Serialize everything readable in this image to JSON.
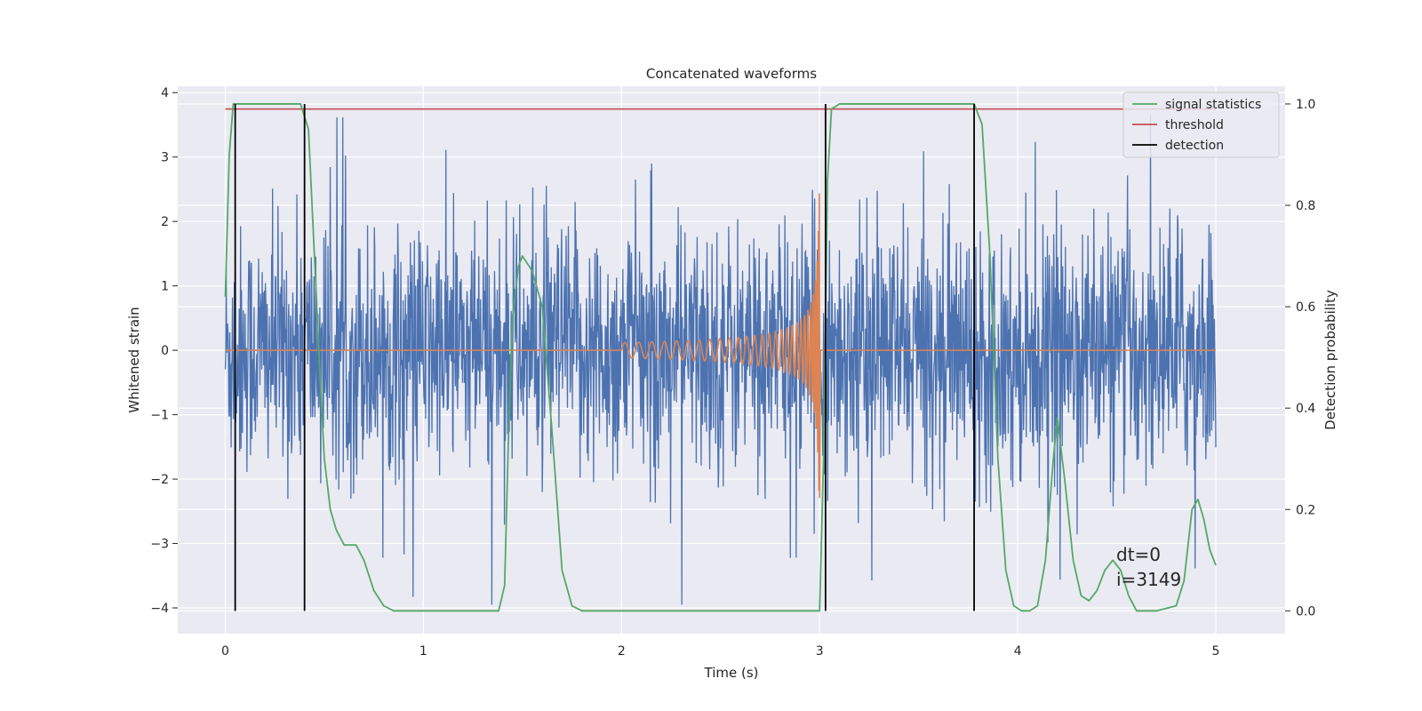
{
  "chart_data": {
    "type": "line",
    "title": "Concatenated waveforms",
    "xlabel": "Time (s)",
    "ylabel": "Whitened strain",
    "y2label": "Detection probability",
    "xlim": [
      -0.24,
      5.35
    ],
    "ylim": [
      -4.4,
      4.1
    ],
    "y2lim": [
      -0.045,
      1.035
    ],
    "xticks": [
      0,
      1,
      2,
      3,
      4,
      5
    ],
    "yticks": [
      -4,
      -3,
      -2,
      -1,
      0,
      1,
      2,
      3,
      4
    ],
    "y2ticks": [
      0.0,
      0.2,
      0.4,
      0.6,
      0.8,
      1.0
    ],
    "xtick_labels": [
      "0",
      "1",
      "2",
      "3",
      "4",
      "5"
    ],
    "ytick_labels": [
      "−4",
      "−3",
      "−2",
      "−1",
      "0",
      "1",
      "2",
      "3",
      "4"
    ],
    "y2tick_labels": [
      "0.0",
      "0.2",
      "0.4",
      "0.6",
      "0.8",
      "1.0"
    ],
    "grid": true,
    "legend_position": "top-right",
    "colors": {
      "noise": "#4c72b0",
      "injected_waveform": "#dd8452",
      "signal_statistics": "#55a868",
      "threshold": "#c44e52",
      "detection": "#000000",
      "background": "#eaeaf2",
      "grid": "#ffffff"
    },
    "series": [
      {
        "name": "signal statistics",
        "axis": "right",
        "x": [
          0.0,
          0.02,
          0.04,
          0.06,
          0.1,
          0.2,
          0.3,
          0.38,
          0.42,
          0.45,
          0.48,
          0.5,
          0.53,
          0.56,
          0.6,
          0.63,
          0.66,
          0.7,
          0.75,
          0.8,
          0.85,
          0.9,
          0.95,
          1.0,
          1.1,
          1.2,
          1.3,
          1.38,
          1.41,
          1.43,
          1.45,
          1.48,
          1.5,
          1.55,
          1.6,
          1.65,
          1.7,
          1.75,
          1.8,
          2.0,
          2.4,
          2.8,
          2.95,
          3.0,
          3.02,
          3.04,
          3.06,
          3.1,
          3.5,
          3.78,
          3.82,
          3.86,
          3.9,
          3.94,
          3.98,
          4.02,
          4.06,
          4.1,
          4.14,
          4.18,
          4.2,
          4.24,
          4.28,
          4.32,
          4.36,
          4.4,
          4.44,
          4.48,
          4.52,
          4.56,
          4.6,
          4.7,
          4.8,
          4.84,
          4.88,
          4.91,
          4.94,
          4.97,
          5.0
        ],
        "values": [
          0.62,
          0.9,
          1.0,
          1.0,
          1.0,
          1.0,
          1.0,
          1.0,
          0.95,
          0.7,
          0.45,
          0.3,
          0.2,
          0.16,
          0.13,
          0.13,
          0.13,
          0.1,
          0.04,
          0.01,
          0.0,
          0.0,
          0.0,
          0.0,
          0.0,
          0.0,
          0.0,
          0.0,
          0.05,
          0.35,
          0.58,
          0.68,
          0.7,
          0.67,
          0.6,
          0.35,
          0.08,
          0.01,
          0.0,
          0.0,
          0.0,
          0.0,
          0.0,
          0.0,
          0.3,
          0.85,
          0.99,
          1.0,
          1.0,
          1.0,
          0.96,
          0.7,
          0.3,
          0.08,
          0.01,
          0.0,
          0.0,
          0.01,
          0.1,
          0.3,
          0.38,
          0.25,
          0.1,
          0.03,
          0.02,
          0.04,
          0.08,
          0.1,
          0.08,
          0.03,
          0.0,
          0.0,
          0.01,
          0.06,
          0.2,
          0.22,
          0.18,
          0.12,
          0.09
        ]
      },
      {
        "name": "threshold",
        "axis": "right",
        "x": [
          0.0,
          5.0
        ],
        "values": [
          0.99,
          0.99
        ]
      },
      {
        "name": "detection",
        "axis": "right",
        "type": "vlines",
        "x": [
          0.05,
          0.4,
          3.03,
          3.78
        ],
        "ymin": 0.0,
        "ymax": 1.0
      }
    ],
    "background_traces": [
      {
        "role": "whitened-noise",
        "axis": "left",
        "x_range": [
          0,
          5
        ],
        "y_range_approx": [
          -4.0,
          3.7
        ]
      },
      {
        "role": "injected-chirp",
        "axis": "left",
        "x_range": [
          0,
          5
        ],
        "chirp_start": 2.0,
        "chirp_merger": 3.0,
        "peak_amplitude": 2.5
      }
    ],
    "annotations": [
      {
        "text": "dt=0",
        "x": 4.5,
        "y": -3.2
      },
      {
        "text": "i=3149",
        "x": 4.5,
        "y": -3.6
      }
    ]
  }
}
